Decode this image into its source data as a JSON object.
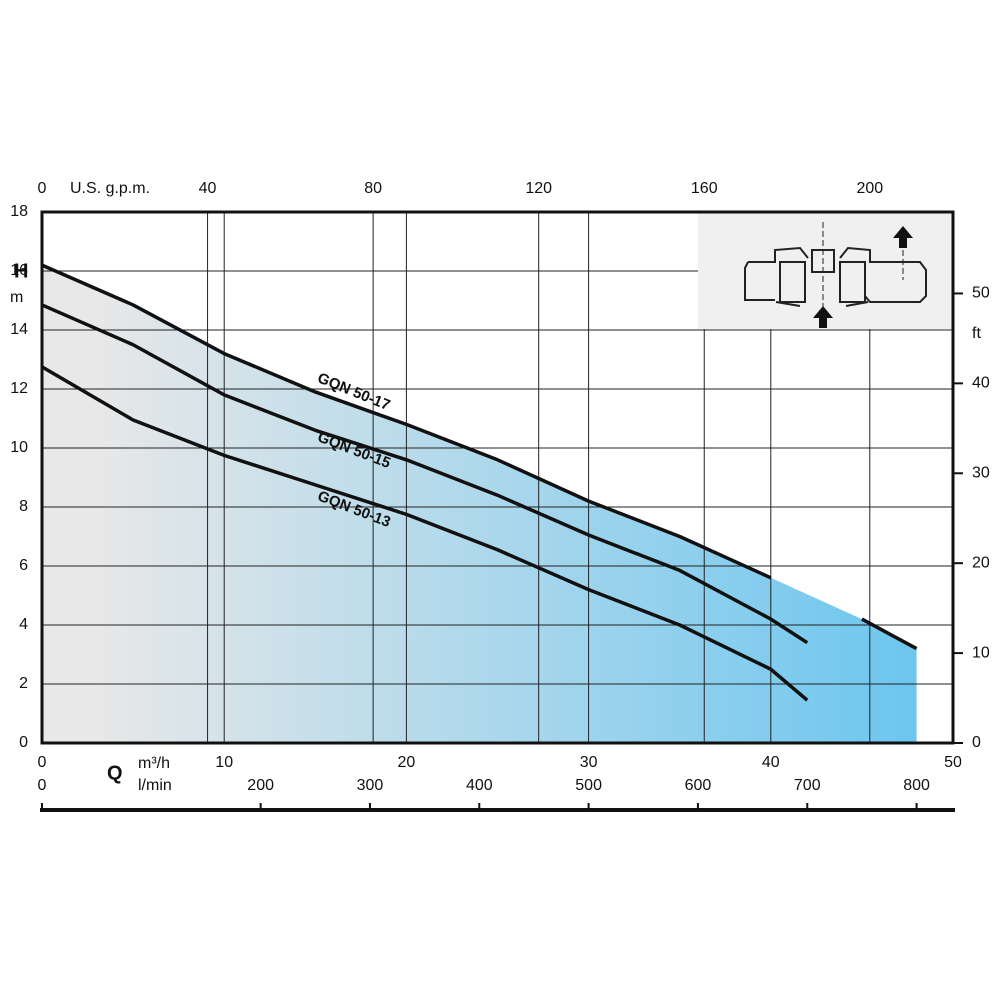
{
  "chart_data": {
    "type": "line",
    "y_label": "H",
    "y_unit": "m",
    "x_label": "Q",
    "x_unit": "m³/h",
    "x3_unit": "l/min",
    "x2_unit": "U.S. g.p.m.",
    "y2_unit": "ft",
    "x": [
      0,
      5,
      10,
      15,
      20,
      25,
      30,
      35,
      40,
      42,
      45,
      48
    ],
    "series": [
      {
        "name": "GQN 50-17",
        "color": "#111111",
        "values": [
          16.2,
          14.85,
          13.2,
          11.9,
          10.8,
          9.6,
          8.2,
          7.0,
          5.6,
          null,
          4.2,
          3.2
        ]
      },
      {
        "name": "GQN 50-15",
        "color": "#111111",
        "values": [
          14.85,
          13.5,
          11.8,
          10.6,
          9.6,
          8.4,
          7.05,
          5.85,
          4.2,
          3.4,
          null,
          null
        ]
      },
      {
        "name": "GQN 50-13",
        "color": "#111111",
        "values": [
          12.75,
          10.95,
          9.75,
          8.75,
          7.75,
          6.55,
          5.2,
          4.0,
          2.5,
          1.45,
          null,
          null
        ]
      }
    ],
    "xlim": [
      0,
      50
    ],
    "xticks": [
      0,
      10,
      20,
      30,
      40,
      50
    ],
    "ylim": [
      0,
      18
    ],
    "yticks": [
      0,
      2,
      4,
      6,
      8,
      10,
      12,
      14,
      16,
      18
    ],
    "x2lim": [
      0,
      220.1
    ],
    "x2ticks": [
      0,
      40,
      80,
      120,
      160,
      200
    ],
    "x3lim": [
      0,
      833.3
    ],
    "x3ticks": [
      0,
      200,
      300,
      400,
      500,
      600,
      700,
      800
    ],
    "y2lim": [
      0,
      59.06
    ],
    "y2ticks": [
      0,
      10,
      20,
      30,
      40,
      50
    ],
    "grid": true,
    "fill_from": "#e8e8e8",
    "fill_to": "#6cc6ef"
  }
}
